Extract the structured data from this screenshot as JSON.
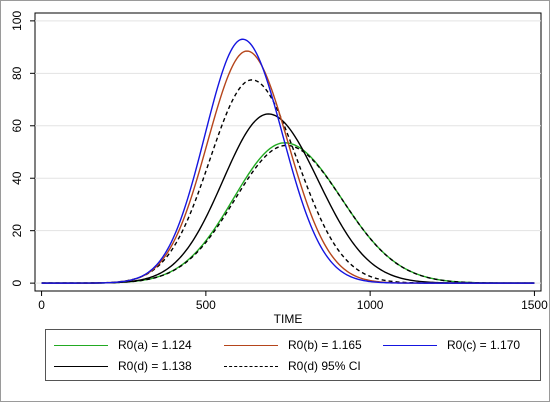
{
  "chart_data": {
    "type": "line",
    "title": "",
    "xlabel": "TIME",
    "ylabel": "",
    "xlim": [
      -20,
      1520
    ],
    "ylim": [
      -3,
      103
    ],
    "x_ticks": [
      0,
      500,
      1000,
      1500
    ],
    "y_ticks": [
      0,
      20,
      40,
      60,
      80,
      100
    ],
    "grid": "horizontal",
    "legend_position": "bottom",
    "series": [
      {
        "name": "R0(a) = 1.124",
        "color": "#22aa22",
        "style": "solid",
        "peak_x": 740,
        "peak_y": 53.5,
        "sigma_left": 155,
        "sigma_right": 172
      },
      {
        "name": "R0(b) = 1.165",
        "color": "#b5451b",
        "style": "solid",
        "peak_x": 625,
        "peak_y": 88.5,
        "sigma_left": 120,
        "sigma_right": 125
      },
      {
        "name": "R0(c) = 1.170",
        "color": "#1515e0",
        "style": "solid",
        "peak_x": 612,
        "peak_y": 93,
        "sigma_left": 115,
        "sigma_right": 122
      },
      {
        "name": "R0(d) = 1.138",
        "color": "#000000",
        "style": "solid",
        "peak_x": 690,
        "peak_y": 64.5,
        "sigma_left": 138,
        "sigma_right": 152
      },
      {
        "name": "R0(d) 95% CI",
        "color": "#000000",
        "style": "dashed",
        "bands": [
          {
            "peak_x": 640,
            "peak_y": 77.5,
            "sigma_left": 128,
            "sigma_right": 138
          },
          {
            "peak_x": 745,
            "peak_y": 52.5,
            "sigma_left": 157,
            "sigma_right": 170
          }
        ]
      }
    ]
  },
  "legend": {
    "items": [
      "R0(a) = 1.124",
      "R0(b) = 1.165",
      "R0(c) = 1.170",
      "R0(d) = 1.138",
      "R0(d) 95% CI"
    ]
  }
}
